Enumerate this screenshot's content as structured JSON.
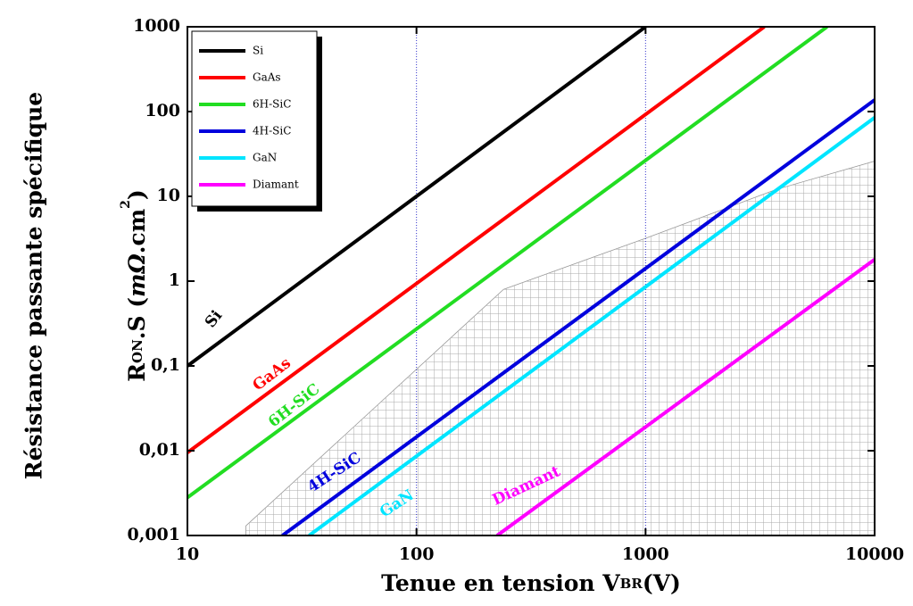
{
  "chart_data": {
    "type": "line",
    "log_x": true,
    "log_y": true,
    "xlabel": [
      "Tenue en tension V",
      "BR",
      "(V)"
    ],
    "ylabel_line1": "Résistance passante spécifique",
    "ylabel": [
      "R",
      "ON",
      ".S (",
      "mΩ",
      ".cm",
      "2",
      ")"
    ],
    "xlim": [
      10,
      10000
    ],
    "ylim": [
      0.001,
      1000
    ],
    "xticks": [
      10,
      100,
      1000,
      10000
    ],
    "yticks": [
      {
        "value": 0.001,
        "label": "0,001"
      },
      {
        "value": 0.01,
        "label": "0,01"
      },
      {
        "value": 0.1,
        "label": "0,1"
      },
      1,
      10,
      100,
      1000
    ],
    "vlines": [
      100,
      1000
    ],
    "vline_color": "#3333cc",
    "shaded_region": {
      "color": "#999999",
      "x": [
        18,
        240,
        1000,
        3700,
        10000,
        10000,
        18
      ],
      "values": [
        0.0013,
        0.8,
        3.2,
        12,
        26,
        0.001,
        0.001
      ]
    },
    "legend": "upper left",
    "series": [
      {
        "name": "Si",
        "color": "#000000",
        "x": [
          10,
          1000
        ],
        "values": [
          0.1,
          1000
        ]
      },
      {
        "name": "GaAs",
        "color": "#ff0000",
        "x": [
          10,
          3300
        ],
        "values": [
          0.0095,
          1000
        ]
      },
      {
        "name": "6H-SiC",
        "color": "#22dd22",
        "x": [
          10,
          6200
        ],
        "values": [
          0.0028,
          1000
        ]
      },
      {
        "name": "4H-SiC",
        "color": "#0000dd",
        "x": [
          26,
          10000
        ],
        "values": [
          0.001,
          137
        ]
      },
      {
        "name": "GaN",
        "color": "#00e5ff",
        "x": [
          34,
          10000
        ],
        "values": [
          0.001,
          85
        ]
      },
      {
        "name": "Diamant",
        "color": "#ff00ff",
        "x": [
          225,
          10000
        ],
        "values": [
          0.001,
          1.8
        ]
      }
    ]
  }
}
